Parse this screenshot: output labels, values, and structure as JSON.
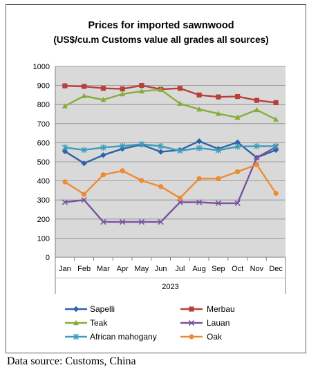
{
  "chart_data": {
    "type": "line",
    "title": "Prices for imported sawnwood",
    "subtitle": "(US$/cu.m Customs value all grades all sources)",
    "categories": [
      "Jan",
      "Feb",
      "Mar",
      "Apr",
      "May",
      "Jun",
      "Jul",
      "Aug",
      "Sep",
      "Oct",
      "Nov",
      "Dec"
    ],
    "xlabel": "2023",
    "ylabel": "",
    "ylim": [
      0,
      1000
    ],
    "yticks": [
      "0",
      "100",
      "200",
      "300",
      "400",
      "500",
      "600",
      "700",
      "800",
      "900",
      "1000"
    ],
    "grid": "horizontal",
    "legend_position": "bottom",
    "series": [
      {
        "name": "Sapelli",
        "color": "#2e62a8",
        "marker": "diamond",
        "values": [
          555,
          492,
          535,
          568,
          590,
          552,
          562,
          608,
          568,
          602,
          522,
          562
        ]
      },
      {
        "name": "Merbau",
        "color": "#b8403a",
        "marker": "square",
        "values": [
          898,
          895,
          885,
          882,
          900,
          880,
          885,
          850,
          840,
          842,
          822,
          810
        ]
      },
      {
        "name": "Teak",
        "color": "#86ad3c",
        "marker": "triangle",
        "values": [
          792,
          845,
          825,
          855,
          870,
          878,
          805,
          775,
          752,
          732,
          772,
          722
        ]
      },
      {
        "name": "Lauan",
        "color": "#7a52a0",
        "marker": "x",
        "values": [
          288,
          300,
          185,
          185,
          185,
          185,
          288,
          288,
          283,
          283,
          522,
          578
        ]
      },
      {
        "name": "African mahogany",
        "color": "#3b9cbc",
        "marker": "star",
        "values": [
          575,
          562,
          575,
          583,
          592,
          582,
          558,
          572,
          560,
          580,
          582,
          582
        ]
      },
      {
        "name": "Oak",
        "color": "#ee8a34",
        "marker": "circle",
        "values": [
          395,
          330,
          432,
          453,
          402,
          370,
          310,
          412,
          412,
          448,
          485,
          335
        ]
      }
    ]
  },
  "footer": {
    "source": "Data source: Customs, China"
  },
  "colors": {
    "plot_background": "#d9d9d9",
    "grid": "#888888",
    "frame_border": "#5b5b5b"
  }
}
